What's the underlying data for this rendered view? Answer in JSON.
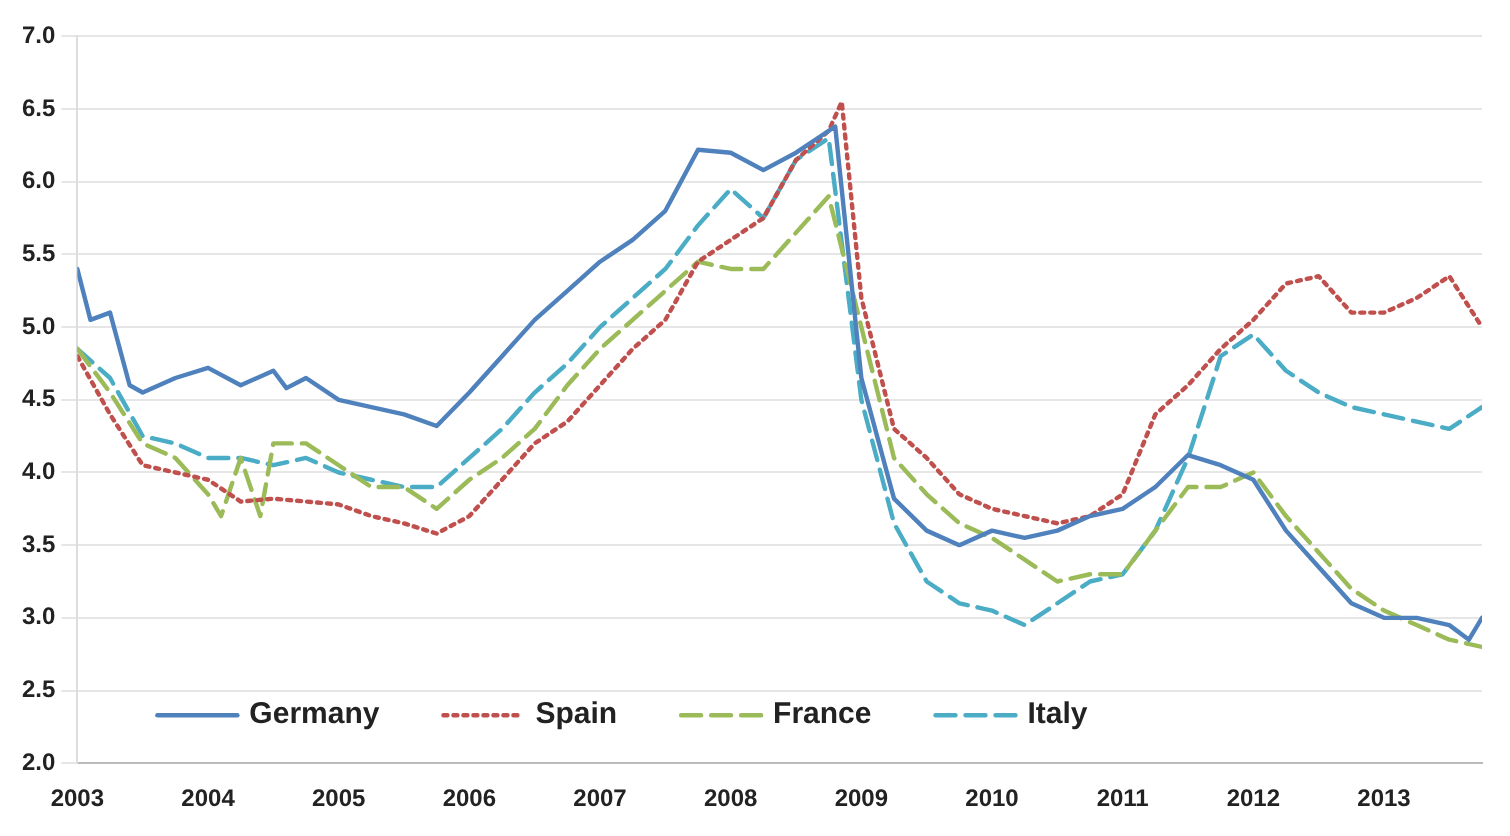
{
  "chart_data": {
    "type": "line",
    "xlim": [
      2003,
      2013.75
    ],
    "xticks": [
      2003,
      2004,
      2005,
      2006,
      2007,
      2008,
      2009,
      2010,
      2011,
      2012,
      2013
    ],
    "ylim": [
      2.0,
      7.0
    ],
    "yticks": [
      {
        "value": 2,
        "label": "2.0"
      },
      {
        "value": 2.5,
        "label": "2.5"
      },
      {
        "value": 3,
        "label": "3.0"
      },
      {
        "value": 3.5,
        "label": "3.5"
      },
      {
        "value": 4,
        "label": "4.0"
      },
      {
        "value": 4.5,
        "label": "4.5"
      },
      {
        "value": 5,
        "label": "5.0"
      },
      {
        "value": 5.5,
        "label": "5.5"
      },
      {
        "value": 6,
        "label": "6.0"
      },
      {
        "value": 6.5,
        "label": "6.5"
      },
      {
        "value": 7,
        "label": "7.0"
      }
    ],
    "grid": "y",
    "legend": "bottom left",
    "marker": "none",
    "series": [
      {
        "name": "Germany",
        "color": "#4f81bd",
        "line_style": "solid",
        "x": [
          2003,
          2003.1,
          2003.25,
          2003.4,
          2003.5,
          2003.75,
          2004,
          2004.25,
          2004.5,
          2004.6,
          2004.75,
          2005,
          2005.25,
          2005.5,
          2005.75,
          2006,
          2006.25,
          2006.5,
          2006.75,
          2007,
          2007.25,
          2007.5,
          2007.75,
          2008,
          2008.25,
          2008.5,
          2008.8,
          2009,
          2009.25,
          2009.5,
          2009.75,
          2010,
          2010.25,
          2010.5,
          2010.75,
          2011,
          2011.25,
          2011.5,
          2011.75,
          2012,
          2012.25,
          2012.5,
          2012.75,
          2013,
          2013.25,
          2013.5,
          2013.65,
          2013.75
        ],
        "values": [
          5.4,
          5.05,
          5.1,
          4.6,
          4.55,
          4.65,
          4.72,
          4.6,
          4.7,
          4.58,
          4.65,
          4.5,
          4.45,
          4.4,
          4.32,
          4.55,
          4.8,
          5.05,
          5.25,
          5.45,
          5.6,
          5.8,
          6.22,
          6.2,
          6.08,
          6.2,
          6.38,
          4.65,
          3.82,
          3.6,
          3.5,
          3.6,
          3.55,
          3.6,
          3.7,
          3.75,
          3.9,
          4.12,
          4.05,
          3.95,
          3.6,
          3.35,
          3.1,
          3.0,
          3.0,
          2.95,
          2.85,
          3.0
        ]
      },
      {
        "name": "Spain",
        "color": "#c0504d",
        "line_style": "dotted",
        "x": [
          2003,
          2003.25,
          2003.5,
          2003.75,
          2004,
          2004.25,
          2004.5,
          2004.75,
          2005,
          2005.25,
          2005.5,
          2005.75,
          2006,
          2006.25,
          2006.5,
          2006.75,
          2007,
          2007.25,
          2007.5,
          2007.75,
          2008,
          2008.25,
          2008.5,
          2008.75,
          2008.85,
          2009,
          2009.25,
          2009.5,
          2009.75,
          2010,
          2010.25,
          2010.5,
          2010.75,
          2011,
          2011.25,
          2011.5,
          2011.75,
          2012,
          2012.25,
          2012.5,
          2012.75,
          2013,
          2013.25,
          2013.5,
          2013.75
        ],
        "values": [
          4.8,
          4.4,
          4.05,
          4.0,
          3.95,
          3.8,
          3.82,
          3.8,
          3.78,
          3.7,
          3.65,
          3.58,
          3.7,
          3.95,
          4.2,
          4.35,
          4.6,
          4.85,
          5.05,
          5.45,
          5.6,
          5.75,
          6.15,
          6.35,
          6.55,
          5.2,
          4.3,
          4.1,
          3.85,
          3.75,
          3.7,
          3.65,
          3.7,
          3.85,
          4.4,
          4.6,
          4.85,
          5.05,
          5.3,
          5.35,
          5.1,
          5.1,
          5.2,
          5.35,
          5.0
        ]
      },
      {
        "name": "France",
        "color": "#9bbb59",
        "line_style": "dashed",
        "x": [
          2003,
          2003.25,
          2003.5,
          2003.75,
          2004,
          2004.1,
          2004.25,
          2004.4,
          2004.5,
          2004.75,
          2005,
          2005.25,
          2005.5,
          2005.75,
          2006,
          2006.25,
          2006.5,
          2006.75,
          2007,
          2007.25,
          2007.5,
          2007.75,
          2008,
          2008.25,
          2008.5,
          2008.75,
          2009,
          2009.25,
          2009.5,
          2009.75,
          2010,
          2010.25,
          2010.5,
          2010.75,
          2011,
          2011.25,
          2011.5,
          2011.75,
          2012,
          2012.25,
          2012.5,
          2012.75,
          2013,
          2013.25,
          2013.5,
          2013.75
        ],
        "values": [
          4.85,
          4.55,
          4.2,
          4.1,
          3.85,
          3.7,
          4.1,
          3.7,
          4.2,
          4.2,
          4.05,
          3.9,
          3.9,
          3.75,
          3.95,
          4.1,
          4.3,
          4.6,
          4.85,
          5.05,
          5.25,
          5.45,
          5.4,
          5.4,
          5.65,
          5.9,
          5.0,
          4.1,
          3.85,
          3.65,
          3.55,
          3.4,
          3.25,
          3.3,
          3.3,
          3.6,
          3.9,
          3.9,
          4.0,
          3.7,
          3.45,
          3.2,
          3.05,
          2.95,
          2.85,
          2.8
        ]
      },
      {
        "name": "Italy",
        "color": "#4bacc6",
        "line_style": "dashed",
        "x": [
          2003,
          2003.25,
          2003.5,
          2003.75,
          2004,
          2004.25,
          2004.5,
          2004.75,
          2005,
          2005.25,
          2005.5,
          2005.75,
          2006,
          2006.25,
          2006.5,
          2006.75,
          2007,
          2007.25,
          2007.5,
          2007.75,
          2008,
          2008.25,
          2008.5,
          2008.75,
          2009,
          2009.25,
          2009.5,
          2009.75,
          2010,
          2010.25,
          2010.5,
          2010.75,
          2011,
          2011.25,
          2011.5,
          2011.75,
          2012,
          2012.25,
          2012.5,
          2012.75,
          2013,
          2013.25,
          2013.5,
          2013.75
        ],
        "values": [
          4.85,
          4.65,
          4.25,
          4.2,
          4.1,
          4.1,
          4.05,
          4.1,
          4.0,
          3.95,
          3.9,
          3.9,
          4.1,
          4.3,
          4.55,
          4.75,
          5.0,
          5.2,
          5.4,
          5.7,
          5.95,
          5.75,
          6.15,
          6.3,
          4.5,
          3.65,
          3.25,
          3.1,
          3.05,
          2.95,
          3.1,
          3.25,
          3.3,
          3.6,
          4.1,
          4.8,
          4.95,
          4.7,
          4.55,
          4.45,
          4.4,
          4.35,
          4.3,
          4.45
        ]
      }
    ]
  }
}
